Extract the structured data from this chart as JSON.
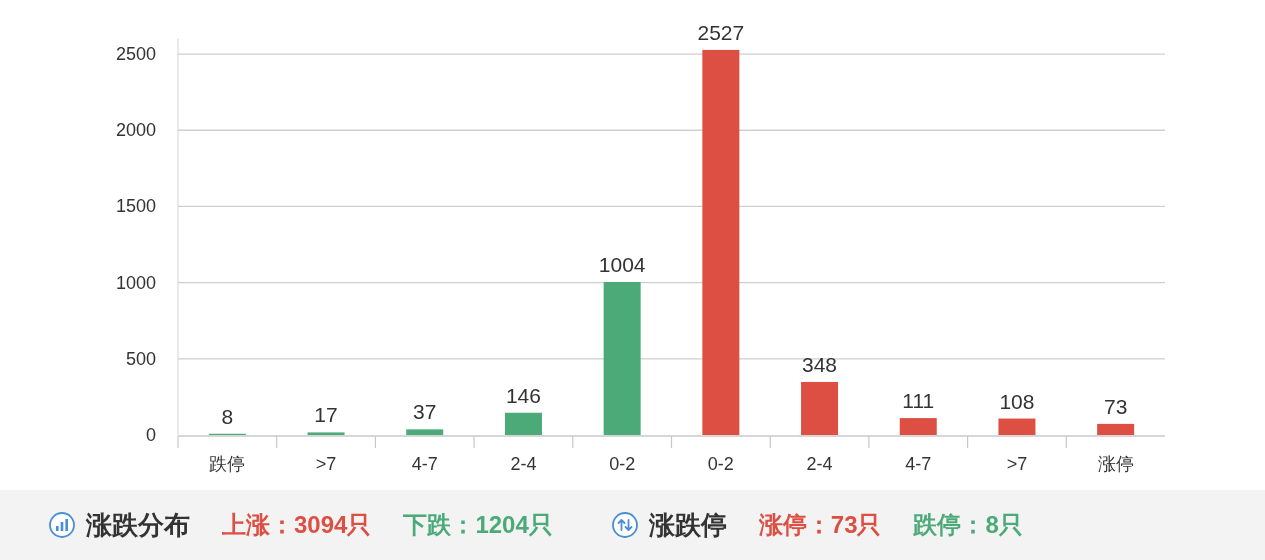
{
  "chart_data": {
    "type": "bar",
    "categories": [
      "跌停",
      ">7",
      "4-7",
      "2-4",
      "0-2",
      "0-2",
      "2-4",
      "4-7",
      ">7",
      "涨停"
    ],
    "values": [
      8,
      17,
      37,
      146,
      1004,
      2527,
      348,
      111,
      108,
      73
    ],
    "colors": [
      "#4caa78",
      "#4caa78",
      "#4caa78",
      "#4caa78",
      "#4caa78",
      "#dd4f43",
      "#dd4f43",
      "#dd4f43",
      "#dd4f43",
      "#dd4f43"
    ],
    "ylim": [
      0,
      2600
    ],
    "yticks": [
      0,
      500,
      1000,
      1500,
      2000,
      2500
    ],
    "grid": "y",
    "data_labels": true,
    "annotations": [
      "涨跌分布",
      "上涨：3094只",
      "下跌：1204只",
      "涨跌停",
      "涨停：73只",
      "跌停：8只"
    ]
  }
}
